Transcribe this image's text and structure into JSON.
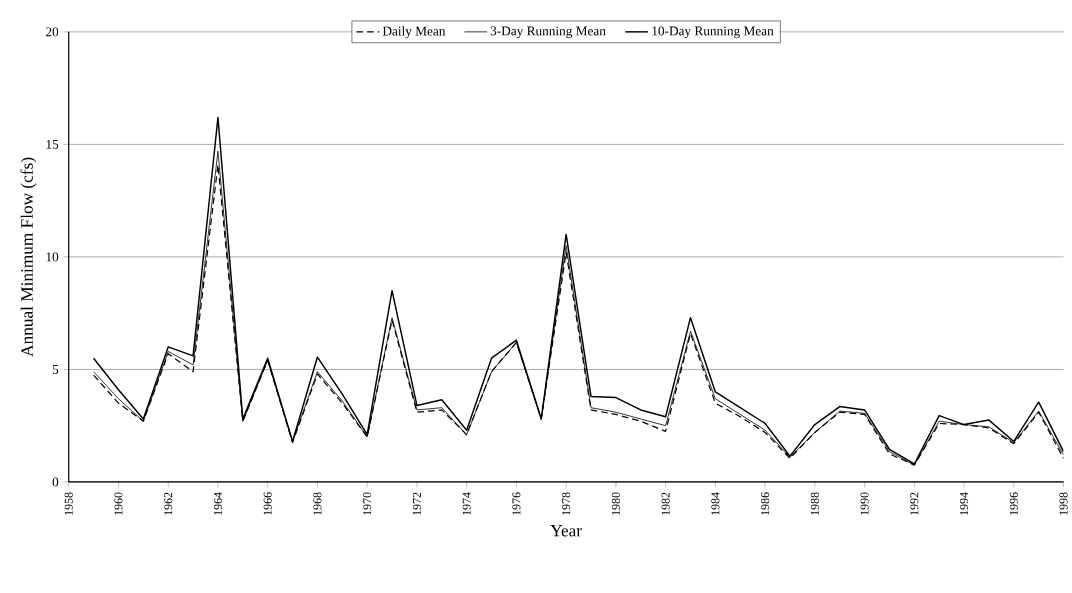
{
  "chart_data": {
    "type": "line",
    "xlabel": "Year",
    "ylabel": "Annual Minimum Flow (cfs)",
    "x": [
      1959,
      1960,
      1961,
      1962,
      1963,
      1964,
      1965,
      1966,
      1967,
      1968,
      1969,
      1970,
      1971,
      1972,
      1973,
      1974,
      1975,
      1976,
      1977,
      1978,
      1979,
      1980,
      1981,
      1982,
      1983,
      1984,
      1985,
      1986,
      1987,
      1988,
      1989,
      1990,
      1991,
      1992,
      1993,
      1994,
      1995,
      1996,
      1997,
      1998
    ],
    "series": [
      {
        "name": "Daily Mean",
        "color": "#000000",
        "line_style": "dashed",
        "values": [
          4.75,
          3.5,
          2.7,
          5.7,
          4.9,
          14.1,
          2.7,
          5.4,
          1.75,
          4.8,
          3.5,
          2.0,
          7.2,
          3.1,
          3.2,
          2.1,
          4.9,
          6.2,
          2.8,
          10.2,
          3.2,
          3.0,
          2.7,
          2.25,
          6.6,
          3.5,
          2.9,
          2.2,
          1.05,
          2.2,
          3.1,
          3.0,
          1.25,
          0.75,
          2.6,
          2.55,
          2.4,
          1.7,
          3.1,
          1.05
        ]
      },
      {
        "name": "3-Day Running Mean",
        "color": "#000000",
        "line_style": "solid",
        "values": [
          4.9,
          3.7,
          2.7,
          5.8,
          5.2,
          14.7,
          2.7,
          5.4,
          1.8,
          4.9,
          3.6,
          2.0,
          7.3,
          3.2,
          3.3,
          2.1,
          4.9,
          6.2,
          2.8,
          10.5,
          3.3,
          3.1,
          2.8,
          2.5,
          6.7,
          3.7,
          3.0,
          2.3,
          1.1,
          2.2,
          3.15,
          3.05,
          1.35,
          0.75,
          2.7,
          2.55,
          2.45,
          1.75,
          3.15,
          1.2
        ]
      },
      {
        "name": "10-Day Running Mean",
        "color": "#000000",
        "line_style": "solid",
        "values": [
          5.5,
          4.1,
          2.8,
          6.0,
          5.6,
          16.2,
          2.8,
          5.5,
          1.8,
          5.55,
          3.9,
          2.1,
          8.5,
          3.4,
          3.65,
          2.3,
          5.5,
          6.3,
          2.8,
          11.0,
          3.8,
          3.75,
          3.2,
          2.9,
          7.3,
          4.0,
          3.3,
          2.6,
          1.15,
          2.55,
          3.35,
          3.2,
          1.45,
          0.8,
          2.95,
          2.55,
          2.75,
          1.8,
          3.55,
          1.35
        ]
      }
    ],
    "xlim": [
      1958,
      1998
    ],
    "ylim": [
      0,
      20
    ],
    "xticks": [
      1958,
      1960,
      1962,
      1964,
      1966,
      1968,
      1970,
      1972,
      1974,
      1976,
      1978,
      1980,
      1982,
      1984,
      1986,
      1988,
      1990,
      1992,
      1994,
      1996,
      1998
    ],
    "yticks": [
      0,
      5,
      10,
      15,
      20
    ],
    "grid": "y",
    "legend": "top",
    "marker": "none"
  }
}
